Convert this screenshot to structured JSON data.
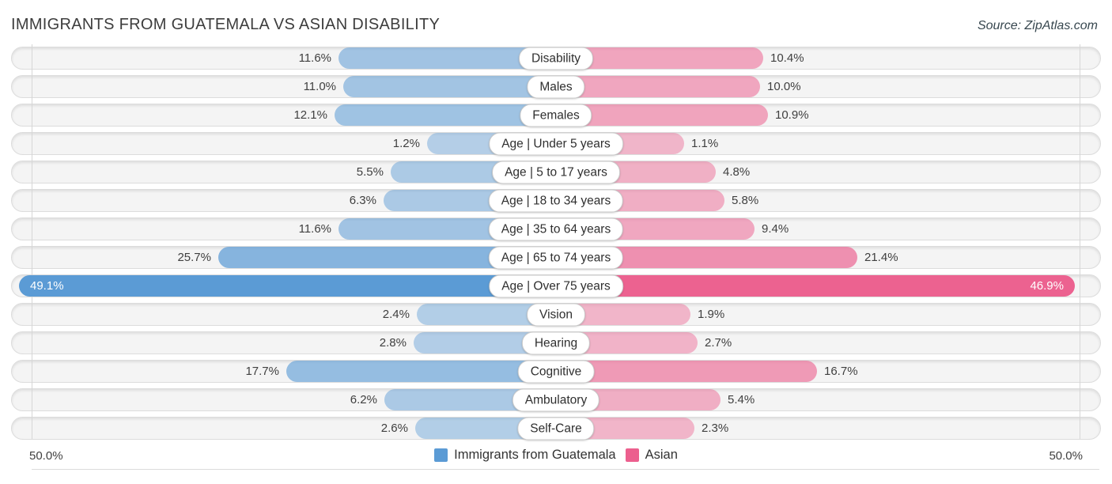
{
  "header": {
    "title": "IMMIGRANTS FROM GUATEMALA VS ASIAN DISABILITY",
    "source": "Source: ZipAtlas.com"
  },
  "chart_data": {
    "type": "bar",
    "orientation": "bidirectional-horizontal",
    "categories": [
      "Disability",
      "Males",
      "Females",
      "Age | Under 5 years",
      "Age | 5 to 17 years",
      "Age | 18 to 34 years",
      "Age | 35 to 64 years",
      "Age | 65 to 74 years",
      "Age | Over 75 years",
      "Vision",
      "Hearing",
      "Cognitive",
      "Ambulatory",
      "Self-Care"
    ],
    "series": [
      {
        "name": "Immigrants from Guatemala",
        "side": "left",
        "color": "#5b9bd5",
        "values": [
          11.6,
          11.0,
          12.1,
          1.2,
          5.5,
          6.3,
          11.6,
          25.7,
          49.1,
          2.4,
          2.8,
          17.7,
          6.2,
          2.6
        ],
        "labels": [
          "11.6%",
          "11.0%",
          "12.1%",
          "1.2%",
          "5.5%",
          "6.3%",
          "11.6%",
          "25.7%",
          "49.1%",
          "2.4%",
          "2.8%",
          "17.7%",
          "6.2%",
          "2.6%"
        ]
      },
      {
        "name": "Asian",
        "side": "right",
        "color": "#ec5f8e",
        "values": [
          10.4,
          10.0,
          10.9,
          1.1,
          4.8,
          5.8,
          9.4,
          21.4,
          46.9,
          1.9,
          2.7,
          16.7,
          5.4,
          2.3
        ],
        "labels": [
          "10.4%",
          "10.0%",
          "10.9%",
          "1.1%",
          "4.8%",
          "5.8%",
          "9.4%",
          "21.4%",
          "46.9%",
          "1.9%",
          "2.7%",
          "16.7%",
          "5.4%",
          "2.3%"
        ]
      }
    ],
    "axis": {
      "max_percent": 50,
      "left_end_label": "50.0%",
      "right_end_label": "50.0%"
    },
    "legend_position": "bottom-center",
    "grid": "two vertical end lines"
  },
  "legend": {
    "items": [
      {
        "label": "Immigrants from Guatemala",
        "color": "#5b9bd5"
      },
      {
        "label": "Asian",
        "color": "#ec5f8e"
      }
    ]
  },
  "footer": {
    "axis_left": "50.0%",
    "axis_right": "50.0%"
  }
}
